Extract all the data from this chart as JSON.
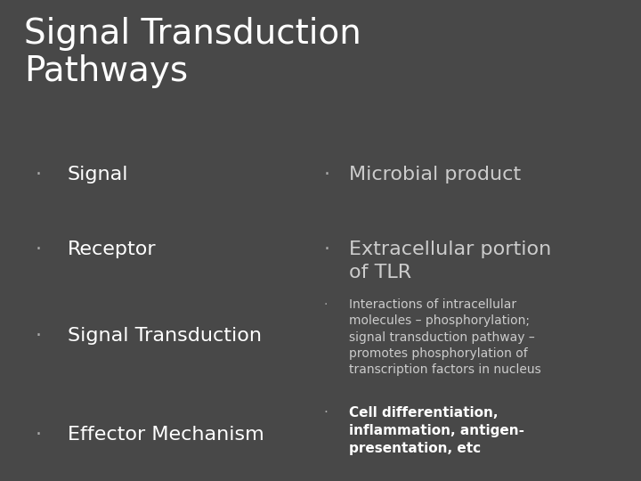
{
  "background_color": "#484848",
  "title": "Signal Transduction\nPathways",
  "title_fontsize": 28,
  "title_color": "#ffffff",
  "bullet_color": "#aaaaaa",
  "text_color": "#ffffff",
  "small_text_color": "#cccccc",
  "left_items": [
    {
      "bullet": "·",
      "text": "Signal",
      "fx": 0.055,
      "fy": 0.655,
      "size": 16
    },
    {
      "bullet": "·",
      "text": "Receptor",
      "fx": 0.055,
      "fy": 0.5,
      "size": 16
    },
    {
      "bullet": "·",
      "text": "Signal Transduction",
      "fx": 0.055,
      "fy": 0.32,
      "size": 16
    },
    {
      "bullet": "·",
      "text": "Effector Mechanism",
      "fx": 0.055,
      "fy": 0.115,
      "size": 16
    }
  ],
  "right_items": [
    {
      "bullet": "·",
      "text": "Microbial product",
      "fx": 0.505,
      "fy": 0.655,
      "size": 16,
      "bold": false,
      "bullet_size": 16
    },
    {
      "bullet": "·",
      "text": "Extracellular portion\nof TLR",
      "fx": 0.505,
      "fy": 0.5,
      "size": 16,
      "bold": false,
      "bullet_size": 16
    },
    {
      "bullet": "·",
      "text": "Interactions of intracellular\nmolecules – phosphorylation;\nsignal transduction pathway –\npromotes phosphorylation of\ntranscription factors in nucleus",
      "fx": 0.505,
      "fy": 0.38,
      "size": 10,
      "bold": false,
      "bullet_size": 10
    },
    {
      "bullet": "·",
      "text": "Cell differentiation,\ninflammation, antigen-\npresentation, etc",
      "fx": 0.505,
      "fy": 0.155,
      "size": 11,
      "bold": true,
      "bullet_size": 11
    }
  ],
  "title_fx": 0.038,
  "title_fy": 0.965
}
